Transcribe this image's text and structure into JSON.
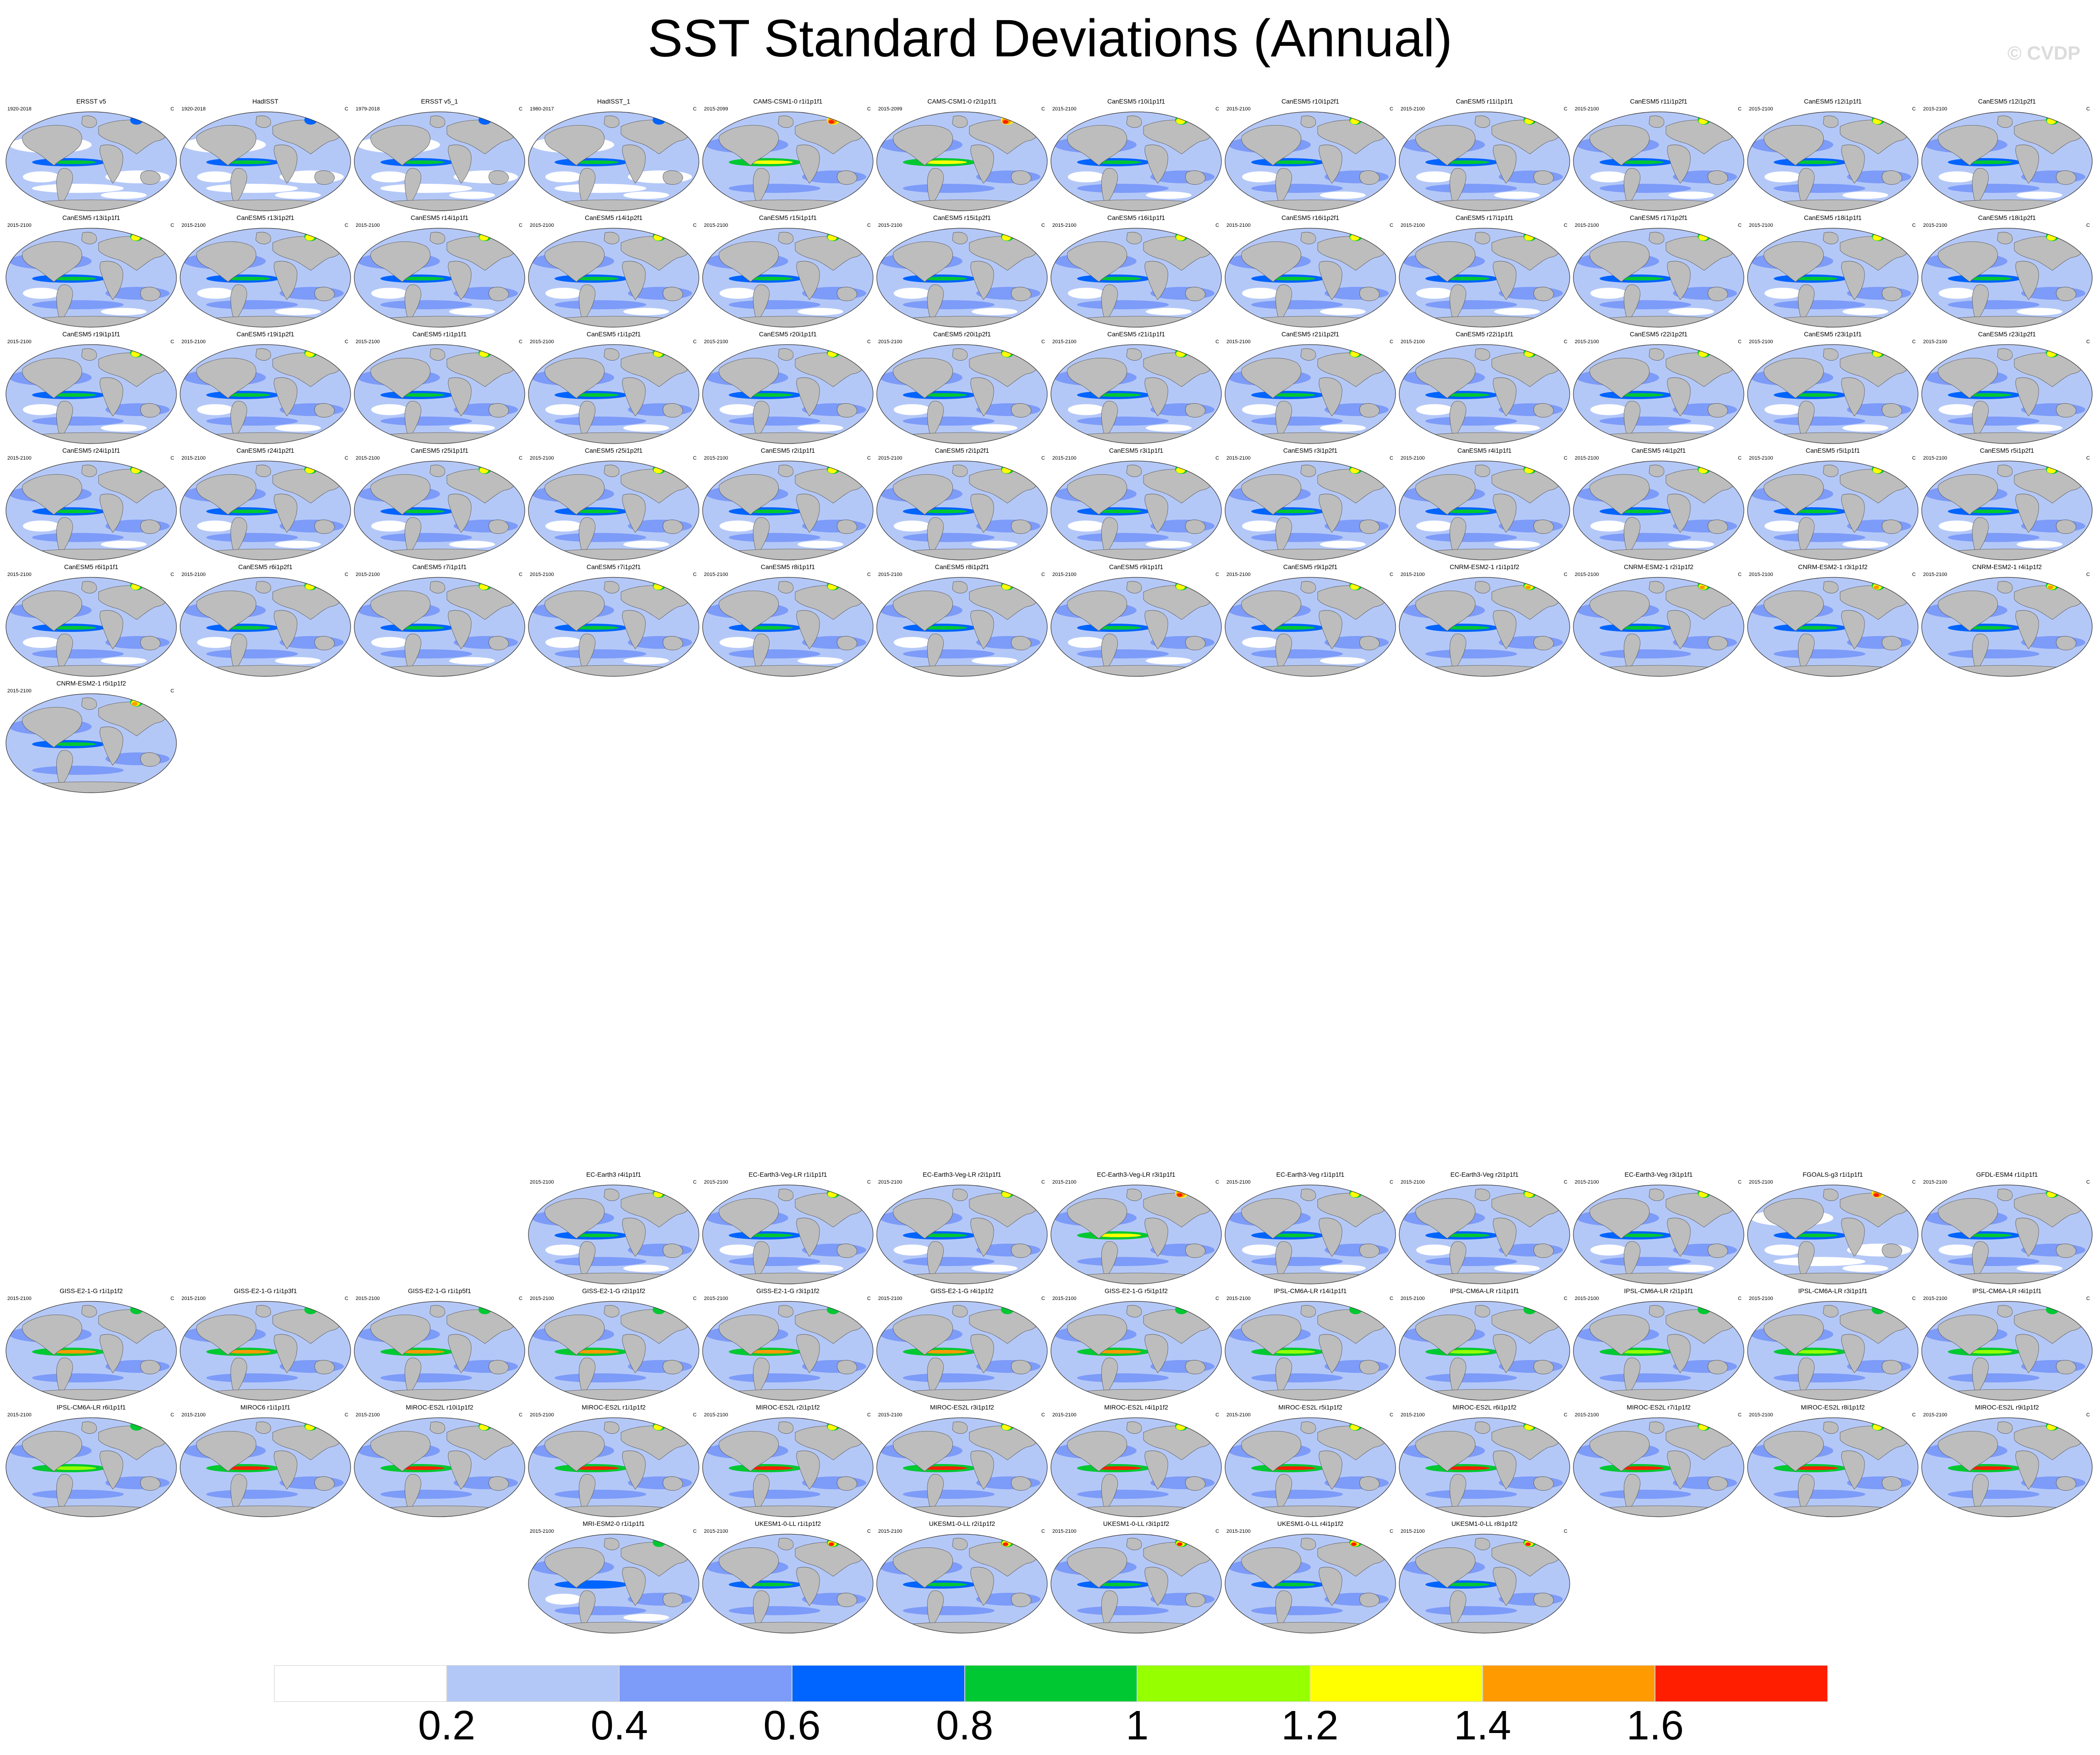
{
  "title": "SST Standard Deviations (Annual)",
  "watermark": "© CVDP",
  "units": "C",
  "colorbar": {
    "colors": [
      "#ffffff",
      "#b4c8f8",
      "#7d9bf8",
      "#0064ff",
      "#00c832",
      "#96ff00",
      "#ffff00",
      "#ff9a00",
      "#ff1e00"
    ],
    "labels": [
      "0.2",
      "0.4",
      "0.6",
      "0.8",
      "1",
      "1.2",
      "1.4",
      "1.6"
    ]
  },
  "panels": [
    {
      "title": "ERSST v5",
      "years": "1920-2018",
      "row": 0,
      "col": 0,
      "style": "obs"
    },
    {
      "title": "HadISST",
      "years": "1920-2018",
      "row": 0,
      "col": 1,
      "style": "obs"
    },
    {
      "title": "ERSST v5_1",
      "years": "1979-2018",
      "row": 0,
      "col": 2,
      "style": "obs"
    },
    {
      "title": "HadISST_1",
      "years": "1980-2017",
      "row": 0,
      "col": 3,
      "style": "obs"
    },
    {
      "title": "CAMS-CSM1-0 r1i1p1f1",
      "years": "2015-2099",
      "row": 0,
      "col": 4,
      "style": "hot"
    },
    {
      "title": "CAMS-CSM1-0 r2i1p1f1",
      "years": "2015-2099",
      "row": 0,
      "col": 5,
      "style": "hot"
    },
    {
      "title": "CanESM5 r10i1p1f1",
      "years": "2015-2100",
      "row": 0,
      "col": 6,
      "style": "can"
    },
    {
      "title": "CanESM5 r10i1p2f1",
      "years": "2015-2100",
      "row": 0,
      "col": 7,
      "style": "can"
    },
    {
      "title": "CanESM5 r11i1p1f1",
      "years": "2015-2100",
      "row": 0,
      "col": 8,
      "style": "can"
    },
    {
      "title": "CanESM5 r11i1p2f1",
      "years": "2015-2100",
      "row": 0,
      "col": 9,
      "style": "can"
    },
    {
      "title": "CanESM5 r12i1p1f1",
      "years": "2015-2100",
      "row": 0,
      "col": 10,
      "style": "can"
    },
    {
      "title": "CanESM5 r12i1p2f1",
      "years": "2015-2100",
      "row": 0,
      "col": 11,
      "style": "can"
    },
    {
      "title": "CanESM5 r13i1p1f1",
      "years": "2015-2100",
      "row": 1,
      "col": 0,
      "style": "can"
    },
    {
      "title": "CanESM5 r13i1p2f1",
      "years": "2015-2100",
      "row": 1,
      "col": 1,
      "style": "can"
    },
    {
      "title": "CanESM5 r14i1p1f1",
      "years": "2015-2100",
      "row": 1,
      "col": 2,
      "style": "can"
    },
    {
      "title": "CanESM5 r14i1p2f1",
      "years": "2015-2100",
      "row": 1,
      "col": 3,
      "style": "can"
    },
    {
      "title": "CanESM5 r15i1p1f1",
      "years": "2015-2100",
      "row": 1,
      "col": 4,
      "style": "can"
    },
    {
      "title": "CanESM5 r15i1p2f1",
      "years": "2015-2100",
      "row": 1,
      "col": 5,
      "style": "can"
    },
    {
      "title": "CanESM5 r16i1p1f1",
      "years": "2015-2100",
      "row": 1,
      "col": 6,
      "style": "can"
    },
    {
      "title": "CanESM5 r16i1p2f1",
      "years": "2015-2100",
      "row": 1,
      "col": 7,
      "style": "can"
    },
    {
      "title": "CanESM5 r17i1p1f1",
      "years": "2015-2100",
      "row": 1,
      "col": 8,
      "style": "can"
    },
    {
      "title": "CanESM5 r17i1p2f1",
      "years": "2015-2100",
      "row": 1,
      "col": 9,
      "style": "can"
    },
    {
      "title": "CanESM5 r18i1p1f1",
      "years": "2015-2100",
      "row": 1,
      "col": 10,
      "style": "can"
    },
    {
      "title": "CanESM5 r18i1p2f1",
      "years": "2015-2100",
      "row": 1,
      "col": 11,
      "style": "can"
    },
    {
      "title": "CanESM5 r19i1p1f1",
      "years": "2015-2100",
      "row": 2,
      "col": 0,
      "style": "can"
    },
    {
      "title": "CanESM5 r19i1p2f1",
      "years": "2015-2100",
      "row": 2,
      "col": 1,
      "style": "can"
    },
    {
      "title": "CanESM5 r1i1p1f1",
      "years": "2015-2100",
      "row": 2,
      "col": 2,
      "style": "can"
    },
    {
      "title": "CanESM5 r1i1p2f1",
      "years": "2015-2100",
      "row": 2,
      "col": 3,
      "style": "can"
    },
    {
      "title": "CanESM5 r20i1p1f1",
      "years": "2015-2100",
      "row": 2,
      "col": 4,
      "style": "can"
    },
    {
      "title": "CanESM5 r20i1p2f1",
      "years": "2015-2100",
      "row": 2,
      "col": 5,
      "style": "can"
    },
    {
      "title": "CanESM5 r21i1p1f1",
      "years": "2015-2100",
      "row": 2,
      "col": 6,
      "style": "can"
    },
    {
      "title": "CanESM5 r21i1p2f1",
      "years": "2015-2100",
      "row": 2,
      "col": 7,
      "style": "can"
    },
    {
      "title": "CanESM5 r22i1p1f1",
      "years": "2015-2100",
      "row": 2,
      "col": 8,
      "style": "can"
    },
    {
      "title": "CanESM5 r22i1p2f1",
      "years": "2015-2100",
      "row": 2,
      "col": 9,
      "style": "can"
    },
    {
      "title": "CanESM5 r23i1p1f1",
      "years": "2015-2100",
      "row": 2,
      "col": 10,
      "style": "can"
    },
    {
      "title": "CanESM5 r23i1p2f1",
      "years": "2015-2100",
      "row": 2,
      "col": 11,
      "style": "can"
    },
    {
      "title": "CanESM5 r24i1p1f1",
      "years": "2015-2100",
      "row": 3,
      "col": 0,
      "style": "can"
    },
    {
      "title": "CanESM5 r24i1p2f1",
      "years": "2015-2100",
      "row": 3,
      "col": 1,
      "style": "can"
    },
    {
      "title": "CanESM5 r25i1p1f1",
      "years": "2015-2100",
      "row": 3,
      "col": 2,
      "style": "can"
    },
    {
      "title": "CanESM5 r25i1p2f1",
      "years": "2015-2100",
      "row": 3,
      "col": 3,
      "style": "can"
    },
    {
      "title": "CanESM5 r2i1p1f1",
      "years": "2015-2100",
      "row": 3,
      "col": 4,
      "style": "can"
    },
    {
      "title": "CanESM5 r2i1p2f1",
      "years": "2015-2100",
      "row": 3,
      "col": 5,
      "style": "can"
    },
    {
      "title": "CanESM5 r3i1p1f1",
      "years": "2015-2100",
      "row": 3,
      "col": 6,
      "style": "can"
    },
    {
      "title": "CanESM5 r3i1p2f1",
      "years": "2015-2100",
      "row": 3,
      "col": 7,
      "style": "can"
    },
    {
      "title": "CanESM5 r4i1p1f1",
      "years": "2015-2100",
      "row": 3,
      "col": 8,
      "style": "can"
    },
    {
      "title": "CanESM5 r4i1p2f1",
      "years": "2015-2100",
      "row": 3,
      "col": 9,
      "style": "can"
    },
    {
      "title": "CanESM5 r5i1p1f1",
      "years": "2015-2100",
      "row": 3,
      "col": 10,
      "style": "can"
    },
    {
      "title": "CanESM5 r5i1p2f1",
      "years": "2015-2100",
      "row": 3,
      "col": 11,
      "style": "can"
    },
    {
      "title": "CanESM5 r6i1p1f1",
      "years": "2015-2100",
      "row": 4,
      "col": 0,
      "style": "can"
    },
    {
      "title": "CanESM5 r6i1p2f1",
      "years": "2015-2100",
      "row": 4,
      "col": 1,
      "style": "can"
    },
    {
      "title": "CanESM5 r7i1p1f1",
      "years": "2015-2100",
      "row": 4,
      "col": 2,
      "style": "can"
    },
    {
      "title": "CanESM5 r7i1p2f1",
      "years": "2015-2100",
      "row": 4,
      "col": 3,
      "style": "can"
    },
    {
      "title": "CanESM5 r8i1p1f1",
      "years": "2015-2100",
      "row": 4,
      "col": 4,
      "style": "can"
    },
    {
      "title": "CanESM5 r8i1p2f1",
      "years": "2015-2100",
      "row": 4,
      "col": 5,
      "style": "can"
    },
    {
      "title": "CanESM5 r9i1p1f1",
      "years": "2015-2100",
      "row": 4,
      "col": 6,
      "style": "can"
    },
    {
      "title": "CanESM5 r9i1p2f1",
      "years": "2015-2100",
      "row": 4,
      "col": 7,
      "style": "can"
    },
    {
      "title": "CNRM-ESM2-1 r1i1p1f2",
      "years": "2015-2100",
      "row": 4,
      "col": 8,
      "style": "cnrm"
    },
    {
      "title": "CNRM-ESM2-1 r2i1p1f2",
      "years": "2015-2100",
      "row": 4,
      "col": 9,
      "style": "cnrm"
    },
    {
      "title": "CNRM-ESM2-1 r3i1p1f2",
      "years": "2015-2100",
      "row": 4,
      "col": 10,
      "style": "cnrm"
    },
    {
      "title": "CNRM-ESM2-1 r4i1p1f2",
      "years": "2015-2100",
      "row": 4,
      "col": 11,
      "style": "cnrm"
    },
    {
      "title": "CNRM-ESM2-1 r5i1p1f2",
      "years": "2015-2100",
      "row": 5,
      "col": 0,
      "style": "cnrm"
    },
    {
      "title": "EC-Earth3 r4i1p1f1",
      "years": "2015-2100",
      "row": 10,
      "col": 3,
      "style": "ec"
    },
    {
      "title": "EC-Earth3-Veg-LR r1i1p1f1",
      "years": "2015-2100",
      "row": 10,
      "col": 4,
      "style": "ec"
    },
    {
      "title": "EC-Earth3-Veg-LR r2i1p1f1",
      "years": "2015-2100",
      "row": 10,
      "col": 5,
      "style": "ec"
    },
    {
      "title": "EC-Earth3-Veg-LR r3i1p1f1",
      "years": "2015-2100",
      "row": 10,
      "col": 6,
      "style": "hot"
    },
    {
      "title": "EC-Earth3-Veg r1i1p1f1",
      "years": "2015-2100",
      "row": 10,
      "col": 7,
      "style": "ec"
    },
    {
      "title": "EC-Earth3-Veg r2i1p1f1",
      "years": "2015-2100",
      "row": 10,
      "col": 8,
      "style": "ec"
    },
    {
      "title": "EC-Earth3-Veg r3i1p1f1",
      "years": "2015-2100",
      "row": 10,
      "col": 9,
      "style": "ec"
    },
    {
      "title": "FGOALS-g3 r1i1p1f1",
      "years": "2015-2100",
      "row": 10,
      "col": 10,
      "style": "fgoals"
    },
    {
      "title": "GFDL-ESM4 r1i1p1f1",
      "years": "2015-2100",
      "row": 10,
      "col": 11,
      "style": "ec"
    },
    {
      "title": "GISS-E2-1-G r1i1p1f2",
      "years": "2015-2100",
      "row": 11,
      "col": 0,
      "style": "giss"
    },
    {
      "title": "GISS-E2-1-G r1i1p3f1",
      "years": "2015-2100",
      "row": 11,
      "col": 1,
      "style": "giss"
    },
    {
      "title": "GISS-E2-1-G r1i1p5f1",
      "years": "2015-2100",
      "row": 11,
      "col": 2,
      "style": "giss"
    },
    {
      "title": "GISS-E2-1-G r2i1p1f2",
      "years": "2015-2100",
      "row": 11,
      "col": 3,
      "style": "giss"
    },
    {
      "title": "GISS-E2-1-G r3i1p1f2",
      "years": "2015-2100",
      "row": 11,
      "col": 4,
      "style": "giss"
    },
    {
      "title": "GISS-E2-1-G r4i1p1f2",
      "years": "2015-2100",
      "row": 11,
      "col": 5,
      "style": "giss"
    },
    {
      "title": "GISS-E2-1-G r5i1p1f2",
      "years": "2015-2100",
      "row": 11,
      "col": 6,
      "style": "giss"
    },
    {
      "title": "IPSL-CM6A-LR r14i1p1f1",
      "years": "2015-2100",
      "row": 11,
      "col": 7,
      "style": "ipsl"
    },
    {
      "title": "IPSL-CM6A-LR r1i1p1f1",
      "years": "2015-2100",
      "row": 11,
      "col": 8,
      "style": "ipsl"
    },
    {
      "title": "IPSL-CM6A-LR r2i1p1f1",
      "years": "2015-2100",
      "row": 11,
      "col": 9,
      "style": "ipsl"
    },
    {
      "title": "IPSL-CM6A-LR r3i1p1f1",
      "years": "2015-2100",
      "row": 11,
      "col": 10,
      "style": "ipsl"
    },
    {
      "title": "IPSL-CM6A-LR r4i1p1f1",
      "years": "2015-2100",
      "row": 11,
      "col": 11,
      "style": "ipsl"
    },
    {
      "title": "IPSL-CM6A-LR r6i1p1f1",
      "years": "2015-2100",
      "row": 12,
      "col": 0,
      "style": "ipsl"
    },
    {
      "title": "MIROC6 r1i1p1f1",
      "years": "2015-2100",
      "row": 12,
      "col": 1,
      "style": "miroc"
    },
    {
      "title": "MIROC-ES2L r10i1p1f2",
      "years": "2015-2100",
      "row": 12,
      "col": 2,
      "style": "miroc"
    },
    {
      "title": "MIROC-ES2L r1i1p1f2",
      "years": "2015-2100",
      "row": 12,
      "col": 3,
      "style": "miroc"
    },
    {
      "title": "MIROC-ES2L r2i1p1f2",
      "years": "2015-2100",
      "row": 12,
      "col": 4,
      "style": "miroc"
    },
    {
      "title": "MIROC-ES2L r3i1p1f2",
      "years": "2015-2100",
      "row": 12,
      "col": 5,
      "style": "miroc"
    },
    {
      "title": "MIROC-ES2L r4i1p1f2",
      "years": "2015-2100",
      "row": 12,
      "col": 6,
      "style": "miroc"
    },
    {
      "title": "MIROC-ES2L r5i1p1f2",
      "years": "2015-2100",
      "row": 12,
      "col": 7,
      "style": "miroc"
    },
    {
      "title": "MIROC-ES2L r6i1p1f2",
      "years": "2015-2100",
      "row": 12,
      "col": 8,
      "style": "miroc"
    },
    {
      "title": "MIROC-ES2L r7i1p1f2",
      "years": "2015-2100",
      "row": 12,
      "col": 9,
      "style": "miroc"
    },
    {
      "title": "MIROC-ES2L r8i1p1f2",
      "years": "2015-2100",
      "row": 12,
      "col": 10,
      "style": "miroc"
    },
    {
      "title": "MIROC-ES2L r9i1p1f2",
      "years": "2015-2100",
      "row": 12,
      "col": 11,
      "style": "miroc"
    },
    {
      "title": "MRI-ESM2-0 r1i1p1f1",
      "years": "2015-2100",
      "row": 13,
      "col": 3,
      "style": "mri"
    },
    {
      "title": "UKESM1-0-LL r1i1p1f2",
      "years": "2015-2100",
      "row": 13,
      "col": 4,
      "style": "uk"
    },
    {
      "title": "UKESM1-0-LL r2i1p1f2",
      "years": "2015-2100",
      "row": 13,
      "col": 5,
      "style": "uk"
    },
    {
      "title": "UKESM1-0-LL r3i1p1f2",
      "years": "2015-2100",
      "row": 13,
      "col": 6,
      "style": "uk"
    },
    {
      "title": "UKESM1-0-LL r4i1p1f2",
      "years": "2015-2100",
      "row": 13,
      "col": 7,
      "style": "uk"
    },
    {
      "title": "UKESM1-0-LL r8i1p1f2",
      "years": "2015-2100",
      "row": 13,
      "col": 8,
      "style": "uk"
    }
  ]
}
